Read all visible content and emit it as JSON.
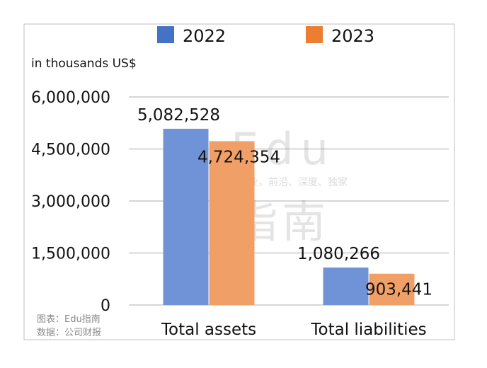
{
  "chart_data": {
    "type": "bar",
    "unit_label": "in thousands US$",
    "categories": [
      "Total assets",
      "Total liabilities"
    ],
    "series": [
      {
        "name": "2022",
        "values": [
          5082528,
          1080266
        ],
        "color": "#4472C4",
        "labels": [
          "5,082,528",
          "1,080,266"
        ]
      },
      {
        "name": "2023",
        "values": [
          4724354,
          903441
        ],
        "color": "#ED7D31",
        "labels": [
          "4,724,354",
          "903,441"
        ]
      }
    ],
    "ylim": [
      0,
      6000000
    ],
    "yticks": [
      0,
      1500000,
      3000000,
      4500000,
      6000000
    ],
    "ytick_labels": [
      "0",
      "1,500,000",
      "3,000,000",
      "4,500,000",
      "6,000,000"
    ],
    "grid": true,
    "legend": "top"
  },
  "watermark": {
    "big": "Edu",
    "tagline": "教育行业，前沿、深度、独家",
    "big2": "指南"
  },
  "source_note": {
    "line1": "图表：Edu指南",
    "line2": "数据：公司财报"
  },
  "footer": {
    "credit": "Edu指南",
    "icon": "wechat-icon"
  }
}
